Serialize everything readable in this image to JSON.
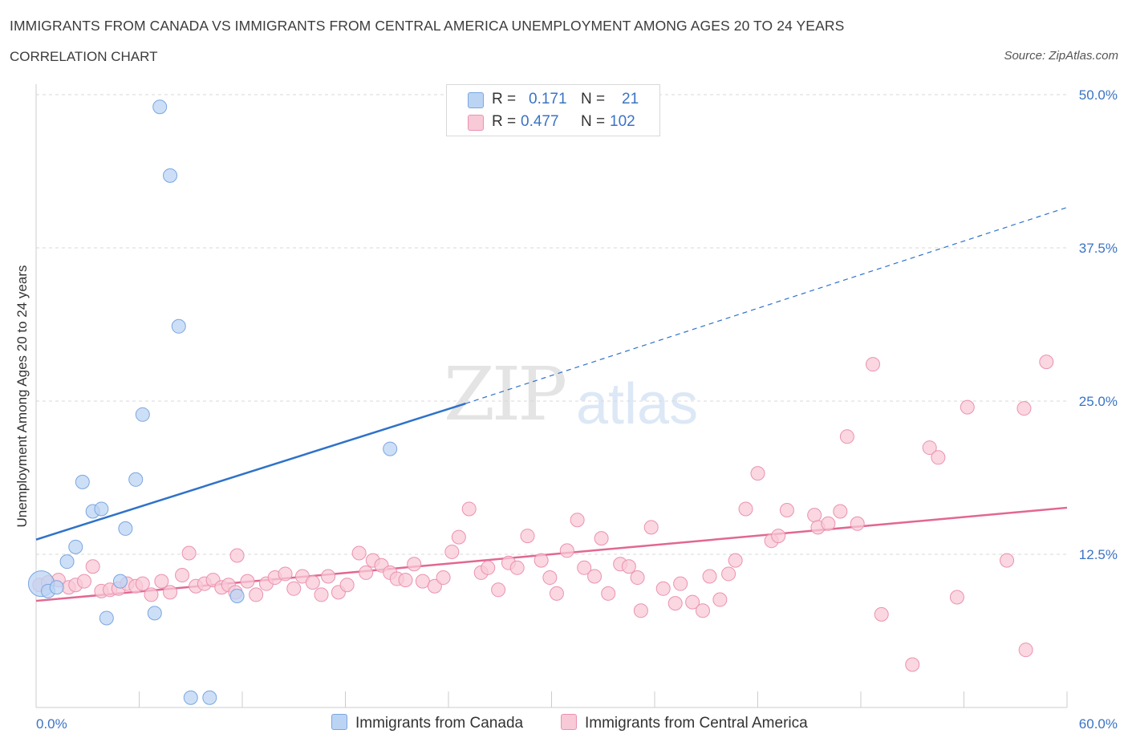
{
  "header": {
    "title": "IMMIGRANTS FROM CANADA VS IMMIGRANTS FROM CENTRAL AMERICA UNEMPLOYMENT AMONG AGES 20 TO 24 YEARS",
    "subtitle": "CORRELATION CHART",
    "source": "Source: ZipAtlas.com"
  },
  "watermark": {
    "zip": "ZIP",
    "atlas": "atlas"
  },
  "legend": {
    "r_label": "R =",
    "n_label": "N =",
    "canada": {
      "r": "0.171",
      "n": "21"
    },
    "central": {
      "r": "0.477",
      "n": "102"
    }
  },
  "colors": {
    "canada_fill": "#bcd4f4",
    "canada_stroke": "#7aa6e0",
    "canada_line": "#2f72c9",
    "central_fill": "#f8c9d7",
    "central_stroke": "#eb92b0",
    "central_line": "#e26791",
    "tick_label": "#3a73c4",
    "grid": "#d9d9d9"
  },
  "chart_data": {
    "type": "scatter",
    "title": "IMMIGRANTS FROM CANADA VS IMMIGRANTS FROM CENTRAL AMERICA UNEMPLOYMENT AMONG AGES 20 TO 24 YEARS",
    "subtitle": "CORRELATION CHART",
    "xlabel": "",
    "ylabel": "Unemployment Among Ages 20 to 24 years",
    "xlim": [
      0,
      60
    ],
    "ylim": [
      0,
      50
    ],
    "x_tick_labels": [
      "0.0%",
      "60.0%"
    ],
    "y_ticks": [
      12.5,
      25.0,
      37.5,
      50.0
    ],
    "y_tick_labels": [
      "12.5%",
      "25.0%",
      "37.5%",
      "50.0%"
    ],
    "grid": "horizontal dashed",
    "legend_position": "top-center and bottom",
    "series": [
      {
        "name": "Immigrants from Canada",
        "trend": {
          "x0": 0,
          "y0": 13.7,
          "x1": 25,
          "y1": 24.8,
          "x_dashed_end": 60,
          "y_dashed_end": 40.8
        },
        "points": [
          {
            "x": 0.3,
            "y": 10.1,
            "big": true
          },
          {
            "x": 0.7,
            "y": 9.5
          },
          {
            "x": 1.2,
            "y": 9.8
          },
          {
            "x": 1.8,
            "y": 11.9
          },
          {
            "x": 2.3,
            "y": 13.1
          },
          {
            "x": 2.7,
            "y": 18.4
          },
          {
            "x": 3.3,
            "y": 16.0
          },
          {
            "x": 3.8,
            "y": 16.2
          },
          {
            "x": 4.1,
            "y": 7.3
          },
          {
            "x": 4.9,
            "y": 10.3
          },
          {
            "x": 5.2,
            "y": 14.6
          },
          {
            "x": 5.8,
            "y": 18.6
          },
          {
            "x": 6.2,
            "y": 23.9
          },
          {
            "x": 6.9,
            "y": 7.7
          },
          {
            "x": 7.2,
            "y": 49.0
          },
          {
            "x": 7.8,
            "y": 43.4
          },
          {
            "x": 8.3,
            "y": 31.1
          },
          {
            "x": 9.0,
            "y": 0.8
          },
          {
            "x": 10.1,
            "y": 0.8
          },
          {
            "x": 11.7,
            "y": 9.1
          },
          {
            "x": 20.6,
            "y": 21.1
          }
        ]
      },
      {
        "name": "Immigrants from Central America",
        "trend": {
          "x0": 0,
          "y0": 8.7,
          "x1": 60,
          "y1": 16.3
        },
        "points": [
          {
            "x": 0.2,
            "y": 10.0
          },
          {
            "x": 0.7,
            "y": 10.2
          },
          {
            "x": 1.3,
            "y": 10.4
          },
          {
            "x": 1.9,
            "y": 9.8
          },
          {
            "x": 2.3,
            "y": 10.0
          },
          {
            "x": 2.8,
            "y": 10.3
          },
          {
            "x": 3.3,
            "y": 11.5
          },
          {
            "x": 3.8,
            "y": 9.5
          },
          {
            "x": 4.3,
            "y": 9.6
          },
          {
            "x": 4.8,
            "y": 9.7
          },
          {
            "x": 5.3,
            "y": 10.1
          },
          {
            "x": 5.8,
            "y": 9.9
          },
          {
            "x": 6.2,
            "y": 10.1
          },
          {
            "x": 6.7,
            "y": 9.2
          },
          {
            "x": 7.3,
            "y": 10.3
          },
          {
            "x": 7.8,
            "y": 9.4
          },
          {
            "x": 8.5,
            "y": 10.8
          },
          {
            "x": 8.9,
            "y": 12.6
          },
          {
            "x": 9.3,
            "y": 9.9
          },
          {
            "x": 9.8,
            "y": 10.1
          },
          {
            "x": 10.3,
            "y": 10.4
          },
          {
            "x": 10.8,
            "y": 9.8
          },
          {
            "x": 11.2,
            "y": 10.0
          },
          {
            "x": 11.6,
            "y": 9.4
          },
          {
            "x": 11.7,
            "y": 12.4
          },
          {
            "x": 12.3,
            "y": 10.3
          },
          {
            "x": 12.8,
            "y": 9.2
          },
          {
            "x": 13.4,
            "y": 10.1
          },
          {
            "x": 13.9,
            "y": 10.6
          },
          {
            "x": 14.5,
            "y": 10.9
          },
          {
            "x": 15.0,
            "y": 9.7
          },
          {
            "x": 15.5,
            "y": 10.7
          },
          {
            "x": 16.1,
            "y": 10.2
          },
          {
            "x": 16.6,
            "y": 9.2
          },
          {
            "x": 17.0,
            "y": 10.7
          },
          {
            "x": 17.6,
            "y": 9.4
          },
          {
            "x": 18.1,
            "y": 10.0
          },
          {
            "x": 18.8,
            "y": 12.6
          },
          {
            "x": 19.2,
            "y": 11.0
          },
          {
            "x": 19.6,
            "y": 12.0
          },
          {
            "x": 20.1,
            "y": 11.6
          },
          {
            "x": 20.6,
            "y": 11.0
          },
          {
            "x": 21.0,
            "y": 10.5
          },
          {
            "x": 21.5,
            "y": 10.4
          },
          {
            "x": 22.0,
            "y": 11.7
          },
          {
            "x": 22.5,
            "y": 10.3
          },
          {
            "x": 23.2,
            "y": 9.9
          },
          {
            "x": 23.7,
            "y": 10.6
          },
          {
            "x": 24.2,
            "y": 12.7
          },
          {
            "x": 24.6,
            "y": 13.9
          },
          {
            "x": 25.2,
            "y": 16.2
          },
          {
            "x": 25.9,
            "y": 11.0
          },
          {
            "x": 26.3,
            "y": 11.4
          },
          {
            "x": 26.9,
            "y": 9.6
          },
          {
            "x": 27.5,
            "y": 11.8
          },
          {
            "x": 28.0,
            "y": 11.4
          },
          {
            "x": 28.6,
            "y": 14.0
          },
          {
            "x": 29.4,
            "y": 12.0
          },
          {
            "x": 29.9,
            "y": 10.6
          },
          {
            "x": 30.3,
            "y": 9.3
          },
          {
            "x": 30.9,
            "y": 12.8
          },
          {
            "x": 31.5,
            "y": 15.3
          },
          {
            "x": 31.9,
            "y": 11.4
          },
          {
            "x": 32.5,
            "y": 10.7
          },
          {
            "x": 32.9,
            "y": 13.8
          },
          {
            "x": 33.3,
            "y": 9.3
          },
          {
            "x": 34.0,
            "y": 11.7
          },
          {
            "x": 34.5,
            "y": 11.5
          },
          {
            "x": 35.0,
            "y": 10.6
          },
          {
            "x": 35.2,
            "y": 7.9
          },
          {
            "x": 35.8,
            "y": 14.7
          },
          {
            "x": 36.5,
            "y": 9.7
          },
          {
            "x": 37.2,
            "y": 8.5
          },
          {
            "x": 37.5,
            "y": 10.1
          },
          {
            "x": 38.2,
            "y": 8.6
          },
          {
            "x": 38.8,
            "y": 7.9
          },
          {
            "x": 39.2,
            "y": 10.7
          },
          {
            "x": 39.8,
            "y": 8.8
          },
          {
            "x": 40.3,
            "y": 10.9
          },
          {
            "x": 40.7,
            "y": 12.0
          },
          {
            "x": 41.3,
            "y": 16.2
          },
          {
            "x": 42.0,
            "y": 19.1
          },
          {
            "x": 42.8,
            "y": 13.6
          },
          {
            "x": 43.2,
            "y": 14.0
          },
          {
            "x": 43.7,
            "y": 16.1
          },
          {
            "x": 45.3,
            "y": 15.7
          },
          {
            "x": 45.5,
            "y": 14.7
          },
          {
            "x": 46.1,
            "y": 15.0
          },
          {
            "x": 46.8,
            "y": 16.0
          },
          {
            "x": 47.2,
            "y": 22.1
          },
          {
            "x": 47.8,
            "y": 15.0
          },
          {
            "x": 48.7,
            "y": 28.0
          },
          {
            "x": 49.2,
            "y": 7.6
          },
          {
            "x": 51.0,
            "y": 3.5
          },
          {
            "x": 52.0,
            "y": 21.2
          },
          {
            "x": 52.5,
            "y": 20.4
          },
          {
            "x": 53.6,
            "y": 9.0
          },
          {
            "x": 54.2,
            "y": 24.5
          },
          {
            "x": 56.5,
            "y": 12.0
          },
          {
            "x": 57.5,
            "y": 24.4
          },
          {
            "x": 57.6,
            "y": 4.7
          },
          {
            "x": 58.8,
            "y": 28.2
          }
        ]
      }
    ]
  },
  "bottom_legend": {
    "canada": "Immigrants from Canada",
    "central": "Immigrants from Central America"
  }
}
